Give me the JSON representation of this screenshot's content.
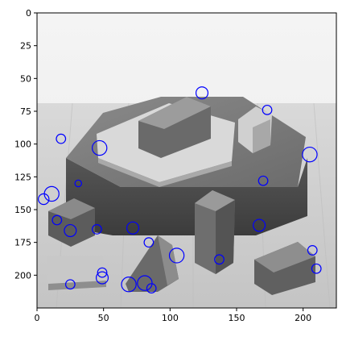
{
  "figure": {
    "type": "image-with-keypoint-overlay",
    "description_of_scene": "",
    "colors": {
      "marker": "#0000ff",
      "axes": "#000000",
      "background": "#ffffff"
    }
  },
  "chart_data": {
    "type": "scatter",
    "title": "",
    "xlabel": "",
    "ylabel": "",
    "xlim": [
      0,
      225
    ],
    "ylim": [
      225,
      0
    ],
    "x_ticks": [
      "0",
      "50",
      "100",
      "150",
      "200"
    ],
    "x_tick_values": [
      0,
      50,
      100,
      150,
      200
    ],
    "y_ticks": [
      "0",
      "25",
      "50",
      "75",
      "100",
      "125",
      "150",
      "175",
      "200"
    ],
    "y_tick_values": [
      0,
      25,
      50,
      75,
      100,
      125,
      150,
      175,
      200
    ],
    "grid": false,
    "marker_style": "hollow-circle",
    "points": [
      {
        "x": 124,
        "y": 61,
        "r": 4.5
      },
      {
        "x": 173,
        "y": 74,
        "r": 3.5
      },
      {
        "x": 18,
        "y": 96,
        "r": 3.5
      },
      {
        "x": 47,
        "y": 103,
        "r": 5.5
      },
      {
        "x": 205,
        "y": 108,
        "r": 5.5
      },
      {
        "x": 170,
        "y": 128,
        "r": 3.5
      },
      {
        "x": 31,
        "y": 130,
        "r": 2.5
      },
      {
        "x": 11,
        "y": 138,
        "r": 5.5
      },
      {
        "x": 5,
        "y": 142,
        "r": 4.0
      },
      {
        "x": 15,
        "y": 158,
        "r": 3.5
      },
      {
        "x": 72,
        "y": 164,
        "r": 4.5
      },
      {
        "x": 167,
        "y": 162,
        "r": 4.5
      },
      {
        "x": 25,
        "y": 166,
        "r": 4.5
      },
      {
        "x": 45,
        "y": 165,
        "r": 3.5
      },
      {
        "x": 84,
        "y": 175,
        "r": 3.5
      },
      {
        "x": 105,
        "y": 185,
        "r": 5.5
      },
      {
        "x": 137,
        "y": 188,
        "r": 3.5
      },
      {
        "x": 207,
        "y": 181,
        "r": 3.5
      },
      {
        "x": 210,
        "y": 195,
        "r": 3.5
      },
      {
        "x": 49,
        "y": 198,
        "r": 3.5
      },
      {
        "x": 49,
        "y": 202,
        "r": 4.5
      },
      {
        "x": 25,
        "y": 207,
        "r": 3.5
      },
      {
        "x": 69,
        "y": 207,
        "r": 5.5
      },
      {
        "x": 81,
        "y": 206,
        "r": 5.5
      },
      {
        "x": 86,
        "y": 210,
        "r": 3.5
      }
    ]
  }
}
